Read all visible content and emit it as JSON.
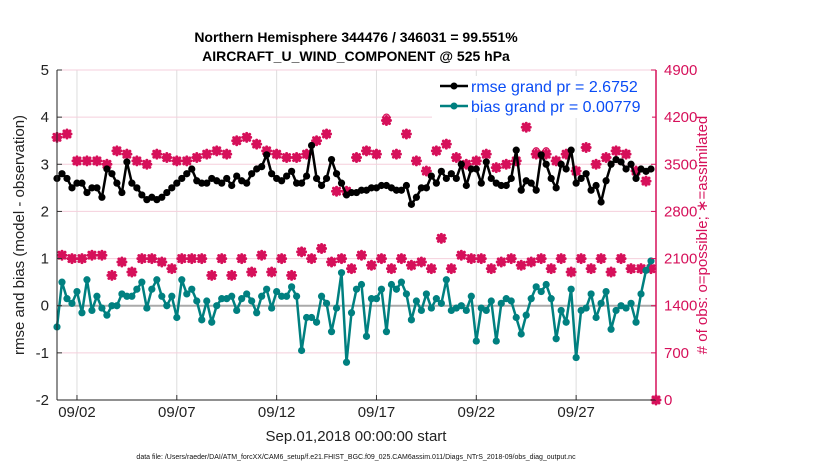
{
  "chart_data": {
    "type": "line",
    "title": [
      "Northern Hemisphere 344476 / 346031 = 99.551%",
      "AIRCRAFT_U_WIND_COMPONENT @ 525 hPa"
    ],
    "xlabel": "Sep.01,2018 00:00:00 start",
    "ylabel": "rmse and bias (model - observation)",
    "ylabel_right": "# of obs: o=possible; ∗=assimilated",
    "footer": "data file: /Users/raeder/DAI/ATM_forcXX/CAM6_setup/f.e21.FHIST_BGC.f09_025.CAM6assim.011/Diags_NTrS_2018-09/obs_diag_output.nc",
    "xlim_days": [
      0,
      30
    ],
    "ylim": [
      -2,
      5
    ],
    "ylim_right": [
      0,
      4900
    ],
    "x_ticks": [
      {
        "day": 1,
        "label": "09/02"
      },
      {
        "day": 6,
        "label": "09/07"
      },
      {
        "day": 11,
        "label": "09/12"
      },
      {
        "day": 16,
        "label": "09/17"
      },
      {
        "day": 21,
        "label": "09/22"
      },
      {
        "day": 26,
        "label": "09/27"
      }
    ],
    "y_ticks": [
      "-2",
      "-1",
      "0",
      "1",
      "2",
      "3",
      "4",
      "5"
    ],
    "y_ticks_right": [
      "0",
      "700",
      "1400",
      "2100",
      "2800",
      "3500",
      "4200",
      "4900"
    ],
    "grid": true,
    "legend_position": "top-right",
    "legend": [
      "rmse grand pr = 2.6752",
      "bias grand pr = 0.00779"
    ],
    "colors": {
      "rmse": "#000000",
      "bias": "#008080",
      "obs": "#d6105a",
      "legend_text": "#0a4cf5",
      "grid": "#dddddd",
      "right_grid": "#f5cfdc"
    },
    "step_days": 0.25,
    "series": [
      {
        "name": "rmse",
        "values": [
          2.7,
          2.8,
          2.7,
          2.5,
          2.6,
          2.6,
          2.4,
          2.5,
          2.5,
          2.3,
          2.9,
          2.8,
          2.6,
          2.4,
          3.05,
          2.6,
          2.5,
          2.35,
          2.25,
          2.3,
          2.25,
          2.3,
          2.4,
          2.5,
          2.6,
          2.7,
          2.8,
          2.9,
          2.65,
          2.6,
          2.6,
          2.7,
          2.65,
          2.6,
          2.7,
          2.55,
          2.75,
          2.65,
          2.6,
          2.8,
          2.9,
          2.95,
          3.2,
          2.8,
          2.7,
          2.65,
          2.75,
          2.85,
          2.6,
          2.6,
          2.75,
          3.4,
          2.7,
          2.55,
          2.7,
          3.1,
          2.8,
          2.6,
          2.35,
          2.4,
          2.4,
          2.45,
          2.45,
          2.5,
          2.5,
          2.55,
          2.55,
          2.5,
          2.45,
          2.45,
          2.55,
          2.15,
          2.3,
          2.5,
          2.5,
          2.75,
          2.6,
          2.85,
          2.7,
          2.8,
          2.7,
          3.0,
          2.55,
          2.9,
          2.9,
          2.6,
          3.05,
          2.7,
          2.6,
          2.55,
          2.55,
          2.7,
          3.3,
          2.45,
          2.65,
          2.6,
          2.45,
          3.2,
          3.0,
          2.7,
          2.5,
          3.0,
          2.9,
          3.3,
          2.6,
          2.7,
          2.8,
          2.45,
          2.55,
          2.2,
          2.65,
          3.0,
          3.1,
          3.05,
          2.9,
          3.0,
          2.7,
          2.9,
          2.85,
          2.9
        ]
      },
      {
        "name": "bias",
        "values": [
          -0.45,
          0.5,
          0.15,
          0.05,
          0.3,
          -0.15,
          0.55,
          -0.1,
          0.2,
          -0.05,
          -0.2,
          0.0,
          0.0,
          0.25,
          0.2,
          0.2,
          0.35,
          0.5,
          -0.05,
          0.35,
          0.55,
          0.2,
          0.0,
          0.2,
          -0.25,
          0.55,
          0.25,
          0.35,
          0.1,
          -0.3,
          0.1,
          -0.35,
          0.0,
          0.15,
          0.15,
          0.2,
          -0.1,
          0.15,
          0.25,
          0.1,
          -0.15,
          0.2,
          0.35,
          -0.05,
          0.3,
          0.2,
          0.2,
          0.4,
          0.2,
          -0.95,
          -0.25,
          -0.25,
          -0.35,
          0.2,
          0.05,
          -0.55,
          -0.05,
          0.7,
          -1.2,
          -0.15,
          0.35,
          0.45,
          -0.65,
          0.15,
          0.15,
          0.35,
          -0.55,
          0.45,
          0.35,
          0.5,
          0.25,
          -0.3,
          0.1,
          -0.1,
          0.25,
          -0.05,
          0.15,
          0.05,
          0.55,
          -0.1,
          -0.05,
          0.0,
          -0.1,
          0.2,
          -0.75,
          -0.05,
          -0.1,
          0.1,
          -0.75,
          0.05,
          0.15,
          0.1,
          -0.25,
          -0.6,
          -0.2,
          0.15,
          0.4,
          0.3,
          0.45,
          0.15,
          -0.7,
          -0.1,
          -0.35,
          0.35,
          -1.1,
          -0.1,
          -0.05,
          0.25,
          -0.25,
          0.05,
          0.3,
          -0.5,
          -0.1,
          0.0,
          -0.05,
          0.05,
          -0.35,
          0.25,
          0.75,
          0.95
        ]
      },
      {
        "name": "obs_assimilated",
        "values": [
          3900,
          2150,
          3950,
          2100,
          3550,
          2100,
          3550,
          2150,
          3550,
          2150,
          3500,
          1850,
          3700,
          2050,
          3650,
          1900,
          3550,
          2100,
          3500,
          2100,
          3650,
          2050,
          3600,
          1950,
          3550,
          2100,
          3550,
          2100,
          3600,
          2100,
          3650,
          1850,
          3700,
          2100,
          3650,
          1850,
          3850,
          2100,
          3900,
          1900,
          3800,
          2150,
          3700,
          1900,
          3650,
          2100,
          3600,
          1850,
          3600,
          2200,
          3650,
          2100,
          3850,
          2250,
          3950,
          2050,
          3100,
          2100,
          3100,
          1950,
          3600,
          2150,
          3700,
          2000,
          3650,
          2100,
          4150,
          1950,
          3650,
          2100,
          3950,
          2000,
          3550,
          2050,
          3400,
          1950,
          3700,
          2400,
          3800,
          1950,
          3600,
          2150,
          3500,
          2100,
          3550,
          2100,
          3650,
          1950,
          3450,
          2050,
          3500,
          2100,
          3550,
          2000,
          4050,
          2050,
          3650,
          2100,
          3650,
          1950,
          3550,
          2100,
          3650,
          1900,
          3400,
          2100,
          3750,
          1950,
          3500,
          2100,
          3600,
          1900,
          3700,
          2100,
          3650,
          1950,
          3400,
          1950,
          3250,
          1950
        ]
      },
      {
        "name": "obs_possible",
        "values": [
          3900,
          2150,
          3950,
          2100,
          3550,
          2100,
          3550,
          2150,
          3550,
          2150,
          3500,
          1850,
          3700,
          2050,
          3650,
          1900,
          3550,
          2100,
          3500,
          2100,
          3650,
          2050,
          3600,
          1950,
          3550,
          2100,
          3550,
          2100,
          3600,
          2100,
          3650,
          1850,
          3700,
          2100,
          3650,
          1850,
          3850,
          2100,
          3900,
          1900,
          3800,
          2150,
          3700,
          1900,
          3650,
          2100,
          3600,
          1850,
          3600,
          2200,
          3650,
          2100,
          3850,
          2250,
          3950,
          2050,
          3100,
          2100,
          3100,
          1950,
          3600,
          2150,
          3700,
          2000,
          3650,
          2100,
          4200,
          1950,
          3650,
          2100,
          3950,
          2000,
          3550,
          2050,
          3400,
          1950,
          3700,
          2400,
          3800,
          1950,
          3600,
          2150,
          3500,
          2100,
          3550,
          2100,
          3650,
          1950,
          3450,
          2050,
          3500,
          2100,
          3550,
          2000,
          4050,
          2050,
          3700,
          2100,
          3700,
          1950,
          3550,
          2100,
          3650,
          1900,
          3400,
          2100,
          3750,
          1950,
          3500,
          2100,
          3600,
          1900,
          3700,
          2100,
          3650,
          1950,
          3400,
          1950,
          3250,
          1950
        ]
      },
      {
        "name": "obs_final_point",
        "day": 30,
        "value": 0
      }
    ]
  }
}
